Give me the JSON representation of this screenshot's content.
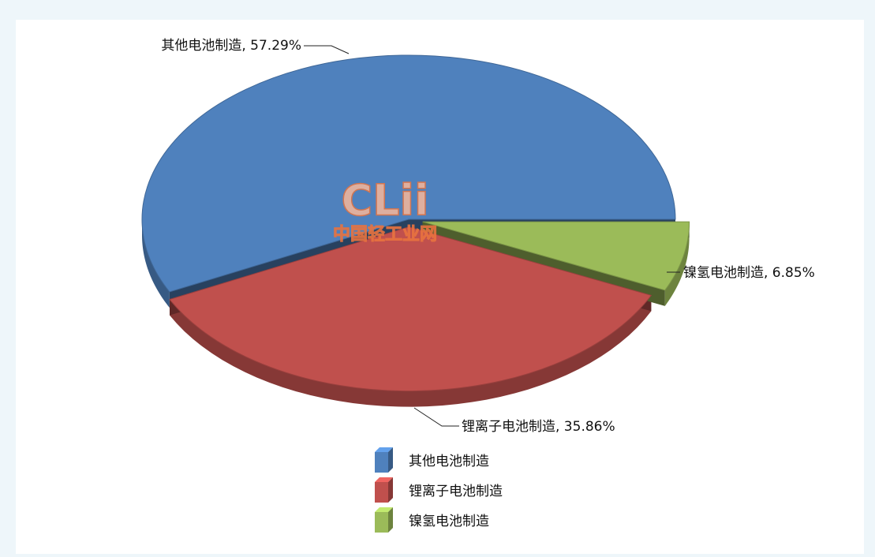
{
  "chart_data": {
    "type": "pie",
    "categories": [
      "其他电池制造",
      "锂离子电池制造",
      "镍氢电池制造"
    ],
    "values": [
      57.29,
      35.86,
      6.85
    ],
    "value_labels": [
      "其他电池制造, 57.29%",
      "锂离子电池制造, 35.86%",
      "镍氢电池制造, 6.85%"
    ],
    "colors": [
      "#4f81bd",
      "#c0504d",
      "#9bbb59"
    ],
    "watermark": [
      "CLii",
      "中国轻工业网"
    ]
  }
}
